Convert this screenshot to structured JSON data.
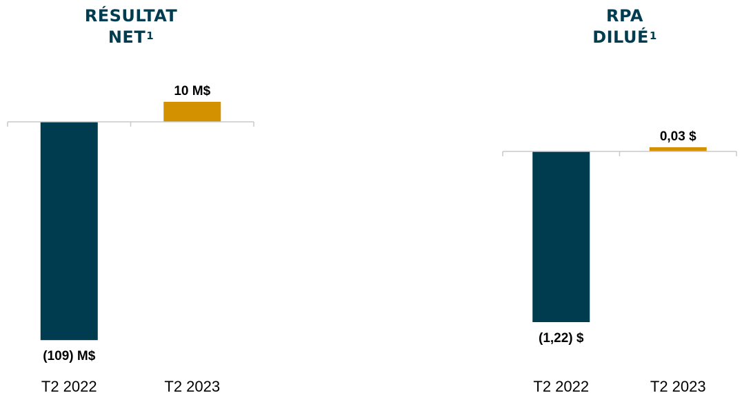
{
  "colors": {
    "title": "#003c4f",
    "negative_bar": "#003c4f",
    "positive_bar": "#d39100",
    "axis": "#c8c8c8",
    "text": "#000000"
  },
  "chart_data": [
    {
      "type": "bar",
      "title_line1": "RÉSULTAT",
      "title_line2": "NET",
      "title_footnote": "1",
      "categories": [
        "T2 2022",
        "T2 2023"
      ],
      "values": [
        -109,
        10
      ],
      "data_labels": [
        "(109) M$",
        "10 M$"
      ],
      "unit": "M$",
      "grid": false,
      "legend": "none"
    },
    {
      "type": "bar",
      "title_line1": "RPA",
      "title_line2": "DILUÉ",
      "title_footnote": "1",
      "categories": [
        "T2 2022",
        "T2 2023"
      ],
      "values": [
        -1.22,
        0.03
      ],
      "data_labels": [
        "(1,22) $",
        "0,03 $"
      ],
      "unit": "$",
      "grid": false,
      "legend": "none"
    }
  ]
}
